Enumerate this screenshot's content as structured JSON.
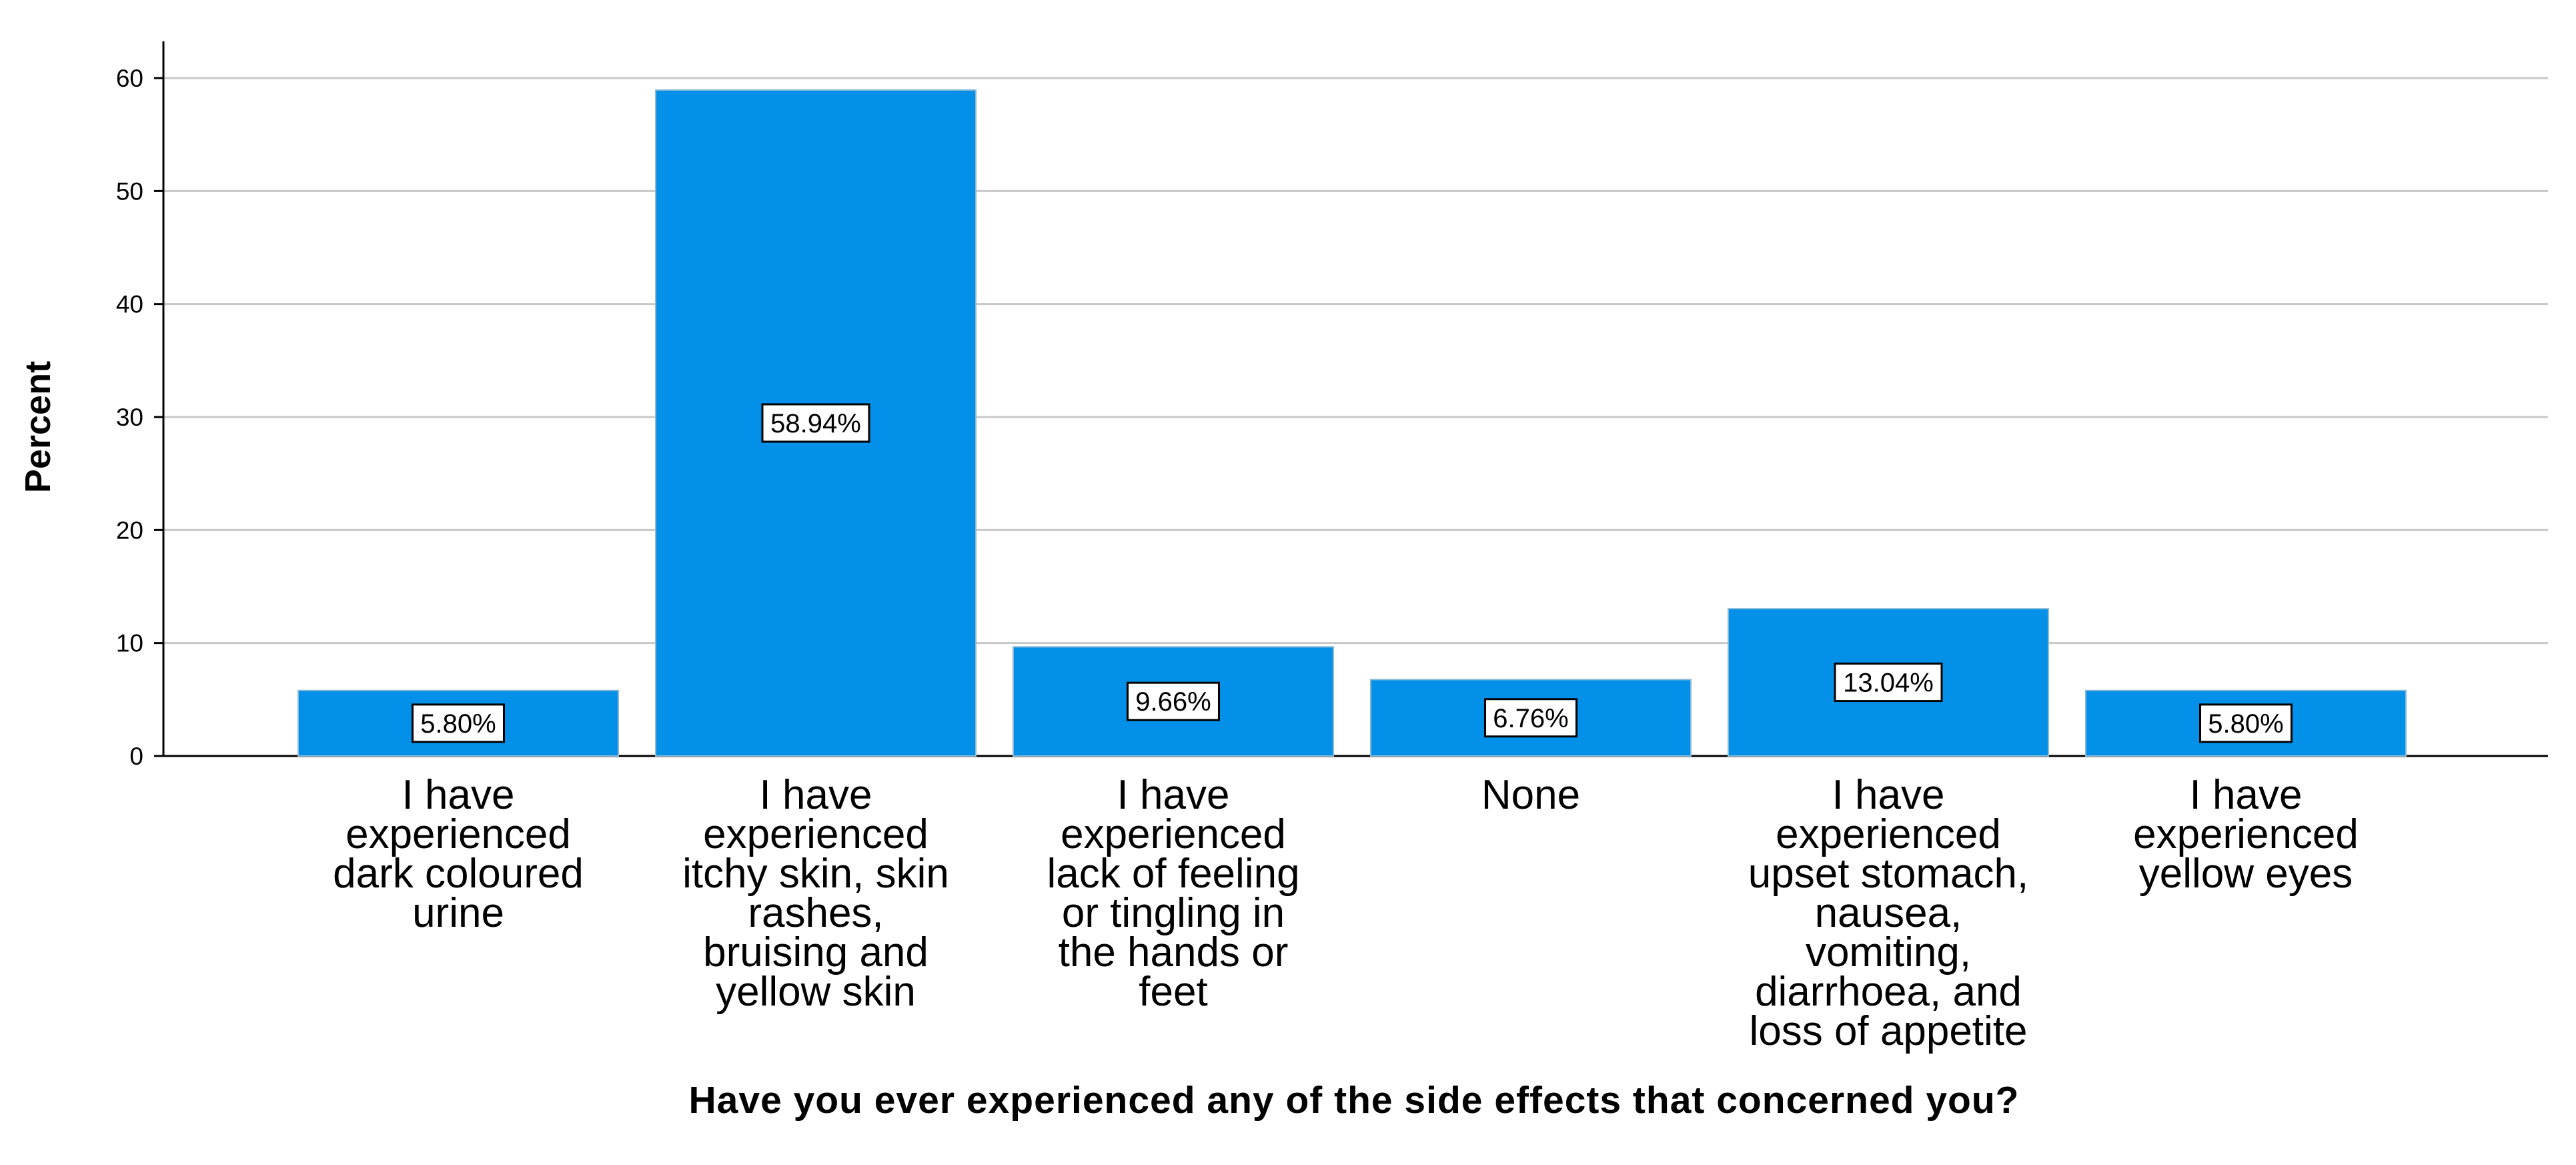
{
  "chart_data": {
    "type": "bar",
    "title": "",
    "xlabel": "Have you ever experienced any of the side effects  that concerned you?",
    "ylabel": "Percent",
    "ylim": [
      0,
      60
    ],
    "yticks": [
      0,
      10,
      20,
      30,
      40,
      50,
      60
    ],
    "grid": true,
    "legend": "none",
    "bar_color": "#0390E8",
    "categories": [
      "I have experienced dark coloured urine",
      "I have experienced itchy skin, skin rashes, bruising and yellow skin",
      "I have experienced lack of feeling or tingling in the hands or feet",
      "None",
      "I have experienced upset stomach, nausea, vomiting, diarrhoea, and loss of appetite",
      "I have experienced yellow eyes"
    ],
    "category_lines": [
      [
        "I have",
        "experienced",
        "dark coloured",
        "urine"
      ],
      [
        "I have",
        "experienced",
        "itchy skin, skin",
        "rashes,",
        "bruising and",
        "yellow skin"
      ],
      [
        "I have",
        "experienced",
        "lack of feeling",
        "or tingling in",
        "the hands or",
        "feet"
      ],
      [
        "None"
      ],
      [
        "I have",
        "experienced",
        "upset stomach,",
        "nausea,",
        "vomiting,",
        "diarrhoea, and",
        "loss of appetite"
      ],
      [
        "I have",
        "experienced",
        "yellow eyes"
      ]
    ],
    "values": [
      5.8,
      58.94,
      9.66,
      6.76,
      13.04,
      5.8
    ],
    "data_labels": [
      "5.80%",
      "58.94%",
      "9.66%",
      "6.76%",
      "13.04%",
      "5.80%"
    ]
  }
}
